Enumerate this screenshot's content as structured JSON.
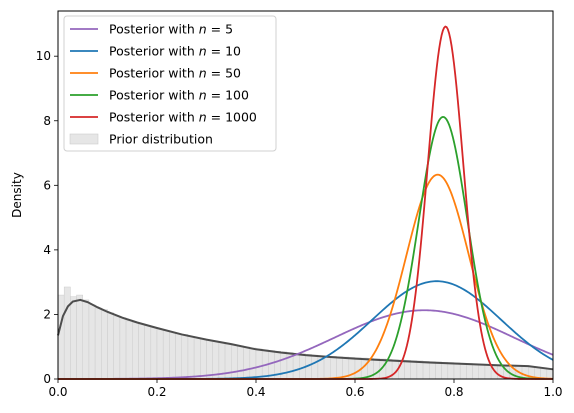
{
  "chart_data": {
    "type": "line",
    "title": "",
    "xlabel": "",
    "ylabel": "Density",
    "xlim": [
      0,
      1
    ],
    "ylim": [
      0,
      11.4
    ],
    "grid": false,
    "legend_placement": "top-left",
    "x_ticks": [
      {
        "value": 0,
        "label": "0.0"
      },
      {
        "value": 0.2,
        "label": "0.2"
      },
      {
        "value": 0.4,
        "label": "0.4"
      },
      {
        "value": 0.6,
        "label": "0.6"
      },
      {
        "value": 0.8,
        "label": "0.8"
      },
      {
        "value": 1.0,
        "label": "1.0"
      }
    ],
    "y_ticks": [
      {
        "value": 0,
        "label": "0"
      },
      {
        "value": 2,
        "label": "2"
      },
      {
        "value": 4,
        "label": "4"
      },
      {
        "value": 6,
        "label": "6"
      },
      {
        "value": 8,
        "label": "8"
      },
      {
        "value": 10,
        "label": "10"
      }
    ],
    "series": [
      {
        "name": "Posterior with n = 5",
        "legend_prefix": "Posterior with ",
        "legend_math": "n",
        "legend_suffix": " = 5",
        "color": "#9467bd",
        "peak_x": 0.74,
        "peak_y": 2.13,
        "sd": 0.18
      },
      {
        "name": "Posterior with n = 10",
        "legend_prefix": "Posterior with ",
        "legend_math": "n",
        "legend_suffix": " = 10",
        "color": "#1f77b4",
        "peak_x": 0.765,
        "peak_y": 3.03,
        "sd": 0.13
      },
      {
        "name": "Posterior with n = 50",
        "legend_prefix": "Posterior with ",
        "legend_math": "n",
        "legend_suffix": " = 50",
        "color": "#ff7f0e",
        "peak_x": 0.767,
        "peak_y": 6.33,
        "sd": 0.063
      },
      {
        "name": "Posterior with n = 100",
        "legend_prefix": "Posterior with ",
        "legend_math": "n",
        "legend_suffix": " = 100",
        "color": "#2ca02c",
        "peak_x": 0.778,
        "peak_y": 8.12,
        "sd": 0.049
      },
      {
        "name": "Posterior with n = 1000",
        "legend_prefix": "Posterior with ",
        "legend_math": "n",
        "legend_suffix": " = 1000",
        "color": "#d62728",
        "peak_x": 0.783,
        "peak_y": 10.92,
        "sd": 0.036
      }
    ],
    "prior": {
      "name": "Prior distribution",
      "fill_color": "#e6e6e6",
      "edge_color": "#cccccc",
      "curve_color": "#4d4d4d",
      "bin_width": 0.0125,
      "histogram_heights": [
        2.6,
        2.85,
        2.55,
        2.6,
        2.45,
        2.3,
        2.2,
        2.15,
        2.05,
        1.95,
        1.9,
        1.8,
        1.75,
        1.7,
        1.65,
        1.6,
        1.55,
        1.5,
        1.45,
        1.4,
        1.38,
        1.32,
        1.28,
        1.24,
        1.2,
        1.16,
        1.12,
        1.08,
        1.05,
        1.02,
        0.99,
        0.96,
        0.93,
        0.9,
        0.88,
        0.86,
        0.84,
        0.82,
        0.8,
        0.78,
        0.76,
        0.74,
        0.72,
        0.71,
        0.7,
        0.69,
        0.68,
        0.67,
        0.66,
        0.65,
        0.64,
        0.63,
        0.62,
        0.61,
        0.6,
        0.59,
        0.58,
        0.57,
        0.56,
        0.55,
        0.54,
        0.53,
        0.52,
        0.51,
        0.5,
        0.49,
        0.48,
        0.47,
        0.46,
        0.45,
        0.44,
        0.43,
        0.42,
        0.41,
        0.4,
        0.39,
        0.38,
        0.37,
        0.35,
        0.32
      ],
      "curve_points": [
        [
          0,
          1.35
        ],
        [
          0.01,
          1.95
        ],
        [
          0.02,
          2.25
        ],
        [
          0.03,
          2.4
        ],
        [
          0.045,
          2.45
        ],
        [
          0.06,
          2.38
        ],
        [
          0.08,
          2.22
        ],
        [
          0.1,
          2.08
        ],
        [
          0.13,
          1.9
        ],
        [
          0.16,
          1.75
        ],
        [
          0.2,
          1.58
        ],
        [
          0.25,
          1.38
        ],
        [
          0.3,
          1.22
        ],
        [
          0.35,
          1.08
        ],
        [
          0.4,
          0.92
        ],
        [
          0.45,
          0.82
        ],
        [
          0.5,
          0.74
        ],
        [
          0.55,
          0.68
        ],
        [
          0.6,
          0.63
        ],
        [
          0.65,
          0.59
        ],
        [
          0.7,
          0.55
        ],
        [
          0.75,
          0.51
        ],
        [
          0.8,
          0.48
        ],
        [
          0.85,
          0.45
        ],
        [
          0.9,
          0.42
        ],
        [
          0.95,
          0.4
        ],
        [
          1.0,
          0.3
        ]
      ]
    }
  }
}
